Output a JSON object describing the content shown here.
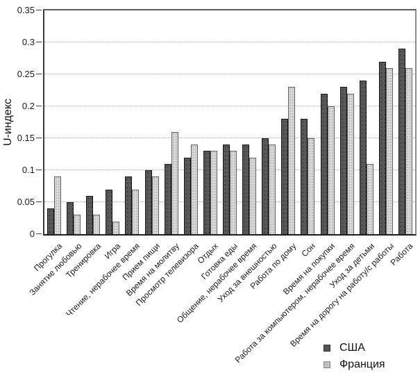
{
  "chart_data": {
    "type": "bar",
    "title": "",
    "xlabel": "",
    "ylabel": "U-индекс",
    "ylim": [
      0,
      0.35
    ],
    "yticks": [
      0,
      0.05,
      0.1,
      0.15,
      0.2,
      0.25,
      0.3,
      0.35
    ],
    "ytick_labels": [
      "0",
      "0.05",
      "0.1",
      "0.15",
      "0.2",
      "0.25",
      "0.3",
      "0.35"
    ],
    "grid": true,
    "gridline_style": "dotted",
    "legend_position": "bottom-right",
    "categories": [
      "Прогулка",
      "Занятие любовью",
      "Тренировка",
      "Игра",
      "Чтение, нерабочее время",
      "Прием пищи",
      "Время на молитву",
      "Просмотр телевизора",
      "Отдых",
      "Готовка еды",
      "Общение, нерабочее время",
      "Уход за внешностью",
      "Работа по дому",
      "Сон",
      "Время на покупки",
      "Работа за компьютером, нерабочее время",
      "Уход за детьми",
      "Время на дорогу на работу/с работы",
      "Работа"
    ],
    "series": [
      {
        "name": "США",
        "color": "#585858",
        "values": [
          0.04,
          0.05,
          0.06,
          0.07,
          0.09,
          0.1,
          0.11,
          0.12,
          0.13,
          0.14,
          0.14,
          0.15,
          0.18,
          0.18,
          0.22,
          0.23,
          0.24,
          0.27,
          0.29
        ]
      },
      {
        "name": "Франция",
        "color": "#d8d8d8",
        "values": [
          0.09,
          0.03,
          0.03,
          0.02,
          0.07,
          0.09,
          0.16,
          0.14,
          0.13,
          0.13,
          0.12,
          0.14,
          0.23,
          0.15,
          0.2,
          0.22,
          0.11,
          0.26,
          0.26
        ]
      }
    ]
  }
}
